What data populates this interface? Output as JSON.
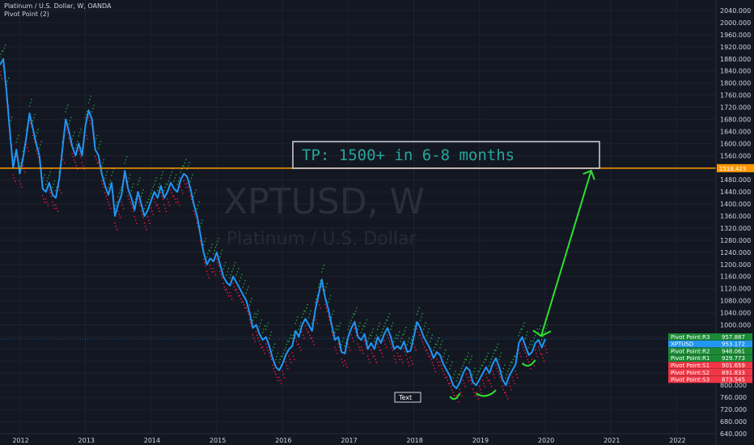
{
  "header": {
    "symbol_line": "Platinum / U.S. Dollar, W, OANDA",
    "indicator_line": "Pivot Point (2)"
  },
  "watermark": {
    "symbol": "XPTUSD, W",
    "name": "Platinum / U.S. Dollar"
  },
  "annotation": {
    "text": "TP: 1500+ in 6-8 months",
    "label_text": "Text"
  },
  "colors": {
    "background": "#131722",
    "price_line": "#2196f3",
    "target_line": "#ff9800",
    "arrow": "#2fe02f",
    "pivot_high": "#26a641",
    "pivot_low": "#ff1744",
    "tp_text": "#26a69a"
  },
  "chart_data": {
    "type": "line",
    "ylim": [
      640,
      2040
    ],
    "xlim": [
      2011.7,
      2022.6
    ],
    "y_ticks": [
      "2040.000",
      "2000.000",
      "1960.000",
      "1920.000",
      "1880.000",
      "1840.000",
      "1800.000",
      "1760.000",
      "1720.000",
      "1680.000",
      "1640.000",
      "1600.000",
      "1560.000",
      "1520.000",
      "1480.000",
      "1440.000",
      "1400.000",
      "1360.000",
      "1320.000",
      "1280.000",
      "1240.000",
      "1200.000",
      "1160.000",
      "1120.000",
      "1080.000",
      "1040.000",
      "1000.000",
      "960.000",
      "920.000",
      "880.000",
      "840.000",
      "800.000",
      "760.000",
      "720.000",
      "680.000",
      "640.000"
    ],
    "x_ticks": [
      "2012",
      "2013",
      "2014",
      "2015",
      "2016",
      "2017",
      "2018",
      "2019",
      "2020",
      "2021",
      "2022"
    ],
    "series": [
      {
        "name": "XPTUSD",
        "points": [
          [
            2011.7,
            1860
          ],
          [
            2011.75,
            1880
          ],
          [
            2011.8,
            1770
          ],
          [
            2011.85,
            1640
          ],
          [
            2011.9,
            1520
          ],
          [
            2011.95,
            1580
          ],
          [
            2012.0,
            1500
          ],
          [
            2012.05,
            1550
          ],
          [
            2012.1,
            1620
          ],
          [
            2012.15,
            1700
          ],
          [
            2012.2,
            1650
          ],
          [
            2012.25,
            1600
          ],
          [
            2012.3,
            1560
          ],
          [
            2012.35,
            1450
          ],
          [
            2012.4,
            1440
          ],
          [
            2012.45,
            1470
          ],
          [
            2012.5,
            1430
          ],
          [
            2012.55,
            1420
          ],
          [
            2012.6,
            1480
          ],
          [
            2012.65,
            1580
          ],
          [
            2012.7,
            1680
          ],
          [
            2012.75,
            1640
          ],
          [
            2012.8,
            1590
          ],
          [
            2012.85,
            1560
          ],
          [
            2012.9,
            1600
          ],
          [
            2012.95,
            1560
          ],
          [
            2013.0,
            1660
          ],
          [
            2013.05,
            1710
          ],
          [
            2013.1,
            1680
          ],
          [
            2013.15,
            1580
          ],
          [
            2013.2,
            1560
          ],
          [
            2013.25,
            1500
          ],
          [
            2013.3,
            1460
          ],
          [
            2013.35,
            1430
          ],
          [
            2013.4,
            1470
          ],
          [
            2013.45,
            1360
          ],
          [
            2013.5,
            1400
          ],
          [
            2013.55,
            1430
          ],
          [
            2013.6,
            1510
          ],
          [
            2013.65,
            1450
          ],
          [
            2013.7,
            1420
          ],
          [
            2013.75,
            1380
          ],
          [
            2013.8,
            1440
          ],
          [
            2013.85,
            1400
          ],
          [
            2013.9,
            1360
          ],
          [
            2013.95,
            1380
          ],
          [
            2014.0,
            1410
          ],
          [
            2014.05,
            1440
          ],
          [
            2014.1,
            1420
          ],
          [
            2014.15,
            1460
          ],
          [
            2014.2,
            1420
          ],
          [
            2014.25,
            1440
          ],
          [
            2014.3,
            1470
          ],
          [
            2014.35,
            1450
          ],
          [
            2014.4,
            1440
          ],
          [
            2014.45,
            1480
          ],
          [
            2014.5,
            1500
          ],
          [
            2014.55,
            1490
          ],
          [
            2014.6,
            1450
          ],
          [
            2014.65,
            1400
          ],
          [
            2014.7,
            1360
          ],
          [
            2014.75,
            1300
          ],
          [
            2014.8,
            1240
          ],
          [
            2014.85,
            1200
          ],
          [
            2014.9,
            1220
          ],
          [
            2014.95,
            1210
          ],
          [
            2015.0,
            1240
          ],
          [
            2015.05,
            1200
          ],
          [
            2015.1,
            1160
          ],
          [
            2015.15,
            1140
          ],
          [
            2015.2,
            1130
          ],
          [
            2015.25,
            1160
          ],
          [
            2015.3,
            1140
          ],
          [
            2015.35,
            1120
          ],
          [
            2015.4,
            1100
          ],
          [
            2015.45,
            1080
          ],
          [
            2015.5,
            1040
          ],
          [
            2015.55,
            990
          ],
          [
            2015.6,
            1000
          ],
          [
            2015.65,
            970
          ],
          [
            2015.7,
            950
          ],
          [
            2015.75,
            960
          ],
          [
            2015.8,
            930
          ],
          [
            2015.85,
            890
          ],
          [
            2015.9,
            860
          ],
          [
            2015.95,
            850
          ],
          [
            2016.0,
            870
          ],
          [
            2016.05,
            900
          ],
          [
            2016.1,
            920
          ],
          [
            2016.15,
            930
          ],
          [
            2016.2,
            980
          ],
          [
            2016.25,
            960
          ],
          [
            2016.3,
            1000
          ],
          [
            2016.35,
            1020
          ],
          [
            2016.4,
            1000
          ],
          [
            2016.45,
            980
          ],
          [
            2016.5,
            1050
          ],
          [
            2016.55,
            1100
          ],
          [
            2016.6,
            1150
          ],
          [
            2016.65,
            1090
          ],
          [
            2016.7,
            1050
          ],
          [
            2016.75,
            1000
          ],
          [
            2016.8,
            950
          ],
          [
            2016.85,
            960
          ],
          [
            2016.9,
            910
          ],
          [
            2016.95,
            905
          ],
          [
            2017.0,
            960
          ],
          [
            2017.05,
            990
          ],
          [
            2017.1,
            1010
          ],
          [
            2017.15,
            960
          ],
          [
            2017.2,
            950
          ],
          [
            2017.25,
            970
          ],
          [
            2017.3,
            920
          ],
          [
            2017.35,
            940
          ],
          [
            2017.4,
            920
          ],
          [
            2017.45,
            960
          ],
          [
            2017.5,
            940
          ],
          [
            2017.55,
            970
          ],
          [
            2017.6,
            990
          ],
          [
            2017.65,
            960
          ],
          [
            2017.7,
            920
          ],
          [
            2017.75,
            930
          ],
          [
            2017.8,
            920
          ],
          [
            2017.85,
            945
          ],
          [
            2017.9,
            910
          ],
          [
            2017.95,
            915
          ],
          [
            2018.0,
            960
          ],
          [
            2018.05,
            1010
          ],
          [
            2018.1,
            990
          ],
          [
            2018.15,
            960
          ],
          [
            2018.2,
            940
          ],
          [
            2018.25,
            920
          ],
          [
            2018.3,
            890
          ],
          [
            2018.35,
            910
          ],
          [
            2018.4,
            900
          ],
          [
            2018.45,
            870
          ],
          [
            2018.5,
            850
          ],
          [
            2018.55,
            830
          ],
          [
            2018.6,
            800
          ],
          [
            2018.65,
            790
          ],
          [
            2018.7,
            810
          ],
          [
            2018.75,
            840
          ],
          [
            2018.8,
            860
          ],
          [
            2018.85,
            850
          ],
          [
            2018.9,
            810
          ],
          [
            2018.95,
            800
          ],
          [
            2019.0,
            820
          ],
          [
            2019.05,
            840
          ],
          [
            2019.1,
            860
          ],
          [
            2019.15,
            840
          ],
          [
            2019.2,
            870
          ],
          [
            2019.25,
            890
          ],
          [
            2019.3,
            860
          ],
          [
            2019.35,
            820
          ],
          [
            2019.4,
            800
          ],
          [
            2019.45,
            830
          ],
          [
            2019.5,
            850
          ],
          [
            2019.55,
            870
          ],
          [
            2019.6,
            940
          ],
          [
            2019.65,
            960
          ],
          [
            2019.7,
            930
          ],
          [
            2019.75,
            900
          ],
          [
            2019.8,
            910
          ],
          [
            2019.85,
            940
          ],
          [
            2019.9,
            950
          ],
          [
            2019.95,
            925
          ],
          [
            2020.0,
            953.172
          ]
        ]
      }
    ],
    "pivot_tags": [
      {
        "label": "Pivot Point:R3",
        "value": "957.887",
        "color": "#1b8a35"
      },
      {
        "label": "XPTUSD",
        "value": "953.172",
        "color": "#2196f3"
      },
      {
        "label": "Pivot Point:R2",
        "value": "948.061",
        "color": "#1b8a35"
      },
      {
        "label": "Pivot Point:R1",
        "value": "929.773",
        "color": "#1b8a35"
      },
      {
        "label": "Pivot Point:S1",
        "value": "901.659",
        "color": "#f23645"
      },
      {
        "label": "Pivot Point:S2",
        "value": "891.833",
        "color": "#f23645"
      },
      {
        "label": "Pivot Point:S3",
        "value": "873.545",
        "color": "#f23645"
      }
    ],
    "target_level": "1518.423",
    "crosshair_level": 953.172,
    "arrow": {
      "from": [
        2020.0,
        955
      ],
      "to": [
        2020.7,
        1510
      ]
    }
  }
}
